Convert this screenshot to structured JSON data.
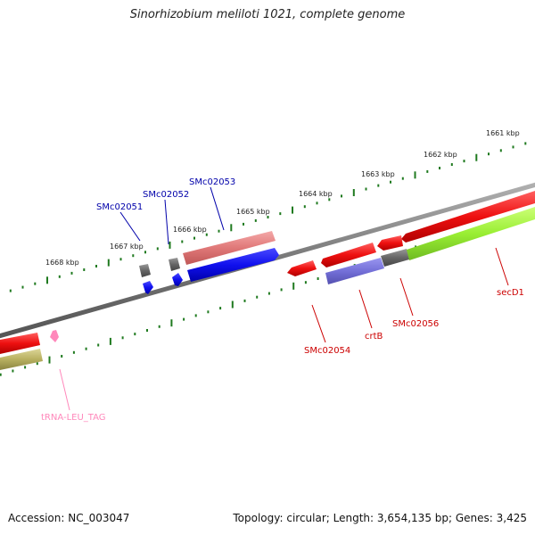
{
  "title": "Sinorhizobium meliloti 1021, complete genome",
  "footer": {
    "accession": "Accession: NC_003047",
    "stats": "Topology: circular; Length: 3,654,135 bp; Genes: 3,425"
  },
  "scale_labels": [
    "1661 kbp",
    "1662 kbp",
    "1663 kbp",
    "1664 kbp",
    "1665 kbp",
    "1666 kbp",
    "1667 kbp",
    "1668 kbp"
  ],
  "genes": {
    "SMc02051": "SMc02051",
    "SMc02052": "SMc02052",
    "SMc02053": "SMc02053",
    "SMc02054": "SMc02054",
    "crtB": "crtB",
    "SMc02056": "SMc02056",
    "secD1": "secD1",
    "tRNA": "tRNA-LEU_TAG"
  },
  "colors": {
    "backbone": "#7a7a7a",
    "scale": "#1f7a1f",
    "forward_cds": "#ee1111",
    "reverse_cds": "#1111ee",
    "pseudo": "#666666",
    "trna": "#ff88bb",
    "label_forward": "#cc0000",
    "label_reverse": "#0000aa",
    "lime": "#99ee33",
    "olive": "#b8b060"
  }
}
